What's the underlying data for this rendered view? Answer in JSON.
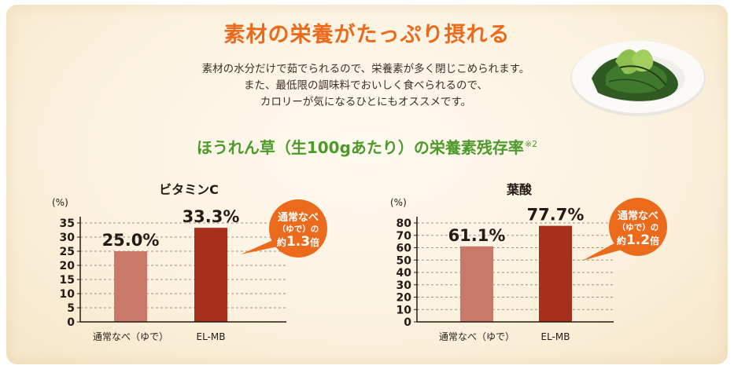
{
  "header": {
    "title": "素材の栄養がたっぷり摂れる",
    "description": [
      "素材の水分だけで茹でられるので、栄養素が多く閉じこめられます。",
      "また、最低限の調味料でおいしく食べられるので、",
      "カロリーが気になるひとにもオススメです。"
    ],
    "subtitle": "ほうれん草（生100gあたり）の栄養素残存率",
    "subtitle_note": "※2"
  },
  "colors": {
    "title": "#ec6a1c",
    "subtitle": "#4d9a2c",
    "bar_pot": "#c9786a",
    "bar_elmb": "#a7301c",
    "callout": "#ec6a1c"
  },
  "chart_data": [
    {
      "type": "bar",
      "title": "ビタミンC",
      "unit_label": "(%)",
      "categories": [
        "通常なべ（ゆで）",
        "EL-MB"
      ],
      "values": [
        25.0,
        33.3
      ],
      "value_labels": [
        "25.0%",
        "33.3%"
      ],
      "ylim": [
        0,
        35
      ],
      "yticks": [
        0,
        5,
        10,
        15,
        20,
        25,
        30,
        35
      ],
      "grid": true,
      "callout": {
        "line1": "通常なべ",
        "line2": "（ゆで）の",
        "prefix": "約",
        "ratio": "1.3",
        "suffix": "倍"
      }
    },
    {
      "type": "bar",
      "title": "葉酸",
      "unit_label": "(%)",
      "categories": [
        "通常なべ（ゆで）",
        "EL-MB"
      ],
      "values": [
        61.1,
        77.7
      ],
      "value_labels": [
        "61.1%",
        "77.7%"
      ],
      "ylim": [
        0,
        80
      ],
      "yticks": [
        0,
        10,
        20,
        30,
        40,
        50,
        60,
        70,
        80
      ],
      "grid": true,
      "callout": {
        "line1": "通常なべ",
        "line2": "（ゆで）の",
        "prefix": "約",
        "ratio": "1.2",
        "suffix": "倍"
      }
    }
  ]
}
